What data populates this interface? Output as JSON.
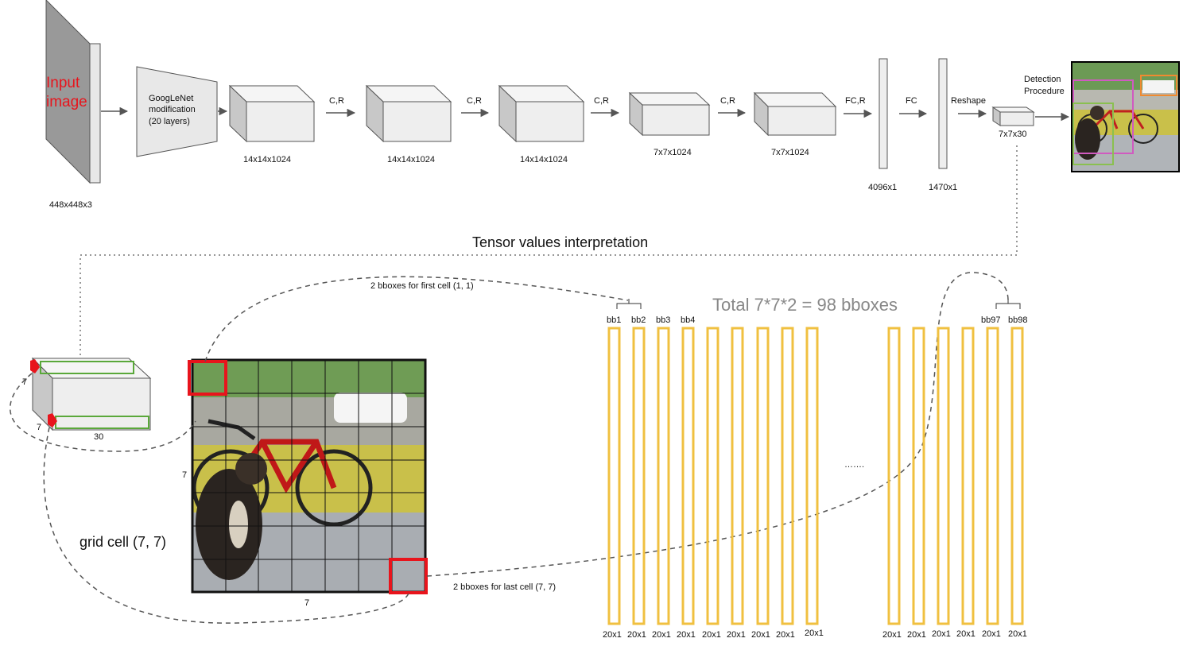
{
  "input": {
    "title_line1": "Input",
    "title_line2": "image",
    "size": "448x448x3"
  },
  "googlenet": {
    "line1": "GoogLeNet",
    "line2": "modification",
    "line3": "(20 layers)"
  },
  "blocks": [
    {
      "size": "14x14x1024",
      "op": "C,R"
    },
    {
      "size": "14x14x1024",
      "op": "C,R"
    },
    {
      "size": "14x14x1024",
      "op": "C,R"
    },
    {
      "size": "7x7x1024",
      "op": "C,R"
    },
    {
      "size": "7x7x1024",
      "op": "FC,R"
    }
  ],
  "fc_layers": [
    {
      "size": "4096x1",
      "op": "FC"
    },
    {
      "size": "1470x1",
      "op": "Reshape"
    }
  ],
  "output_tensor": {
    "size": "7x7x30"
  },
  "detection": {
    "line1": "Detection",
    "line2": "Procedure"
  },
  "interpretation_title": "Tensor values interpretation",
  "tensor_dims": {
    "h": "7",
    "w": "7",
    "d": "30"
  },
  "grid": {
    "side_label": "7",
    "bottom_label": "7",
    "cell_label": "grid cell (7, 7)"
  },
  "first_cell_label": "2 bboxes for first cell (1, 1)",
  "last_cell_label": "2 bboxes for last cell (7, 7)",
  "total_label": "Total 7*7*2 = 98 bboxes",
  "ellipsis": "…….",
  "bbox_names_left": [
    "bb1",
    "bb2",
    "bb3",
    "bb4"
  ],
  "bbox_names_right": [
    "bb97",
    "bb98"
  ],
  "bar_size_labels": [
    "20x1",
    "20x1",
    "20x1",
    "20x1",
    "20x1",
    "20x1",
    "20x1",
    "20x1",
    "20x1",
    "20x1",
    "20x1",
    "20x1",
    "20x1",
    "20x1",
    "20x1"
  ],
  "colors": {
    "bar": "#f0c040",
    "highlight": "#e8141c",
    "green": "#5aa83a",
    "arrow": "#555555",
    "box_fill": "#eeeeee",
    "box_side": "#c8c8c8"
  }
}
